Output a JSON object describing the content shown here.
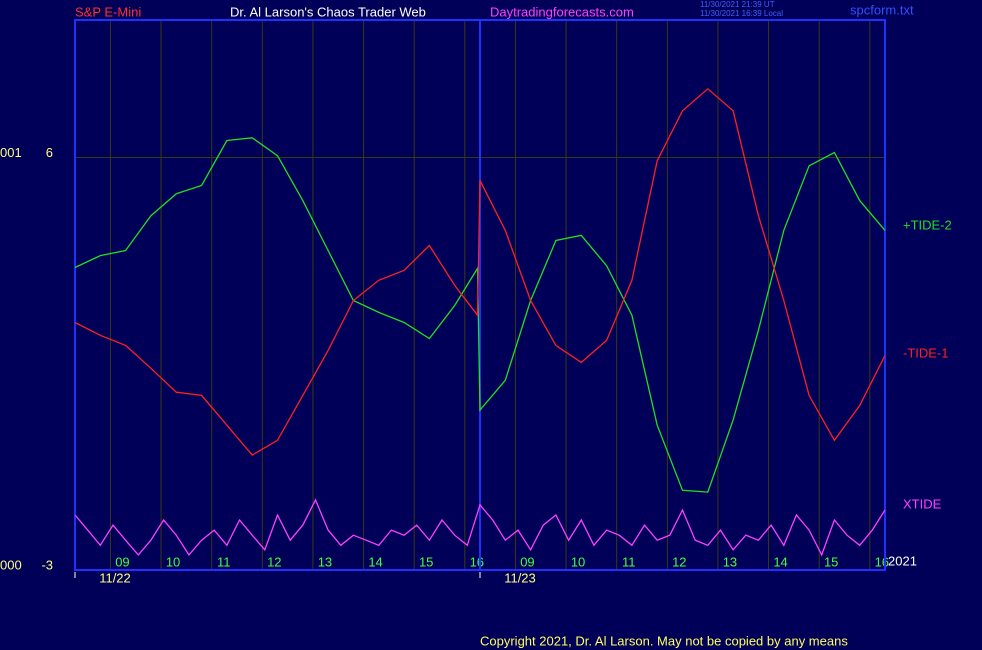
{
  "chart_data": {
    "type": "line",
    "header": {
      "instrument": "S&P E-Mini",
      "title": "Dr. Al Larson's Chaos Trader Web",
      "site": "Daytradingforecasts.com",
      "time_ut": "11/30/2021 21:39 UT",
      "time_local": "11/30/2021 16:39 Local",
      "file": "spcform.txt"
    },
    "footer": "Copyright 2021, Dr. Al Larson. May not be copied by any means",
    "year_label": "2021",
    "xlim": [
      0,
      16
    ],
    "ylim": [
      -3,
      9
    ],
    "yticks": [
      6,
      -3
    ],
    "y_extra_labels": [
      "001",
      "000"
    ],
    "xticks": [
      {
        "value": 0.7,
        "label": "09"
      },
      {
        "value": 1.7,
        "label": "10"
      },
      {
        "value": 2.7,
        "label": "11"
      },
      {
        "value": 3.7,
        "label": "12"
      },
      {
        "value": 4.7,
        "label": "13"
      },
      {
        "value": 5.7,
        "label": "14"
      },
      {
        "value": 6.7,
        "label": "15"
      },
      {
        "value": 7.7,
        "label": "16"
      },
      {
        "value": 8.7,
        "label": "09"
      },
      {
        "value": 9.7,
        "label": "10"
      },
      {
        "value": 10.7,
        "label": "11"
      },
      {
        "value": 11.7,
        "label": "12"
      },
      {
        "value": 12.7,
        "label": "13"
      },
      {
        "value": 13.7,
        "label": "14"
      },
      {
        "value": 14.7,
        "label": "15"
      },
      {
        "value": 15.7,
        "label": "16"
      }
    ],
    "date_ticks": [
      {
        "value": 0,
        "label": "11/22"
      },
      {
        "value": 8,
        "label": "11/23"
      }
    ],
    "day_break": 8,
    "grid": true,
    "series": [
      {
        "name": "+TIDE-2",
        "color": "#20e020",
        "x": [
          0,
          0.5,
          1,
          1.5,
          2,
          2.5,
          3,
          3.5,
          4,
          4.5,
          5,
          5.5,
          6,
          6.5,
          7,
          7.5,
          7.95,
          8,
          8.5,
          9,
          9.5,
          10,
          10.5,
          11,
          11.5,
          12,
          12.5,
          13,
          13.5,
          14,
          14.5,
          15,
          15.5,
          16
        ],
        "values": [
          3.6,
          3.86,
          3.97,
          4.73,
          5.21,
          5.39,
          6.37,
          6.43,
          6.04,
          5.06,
          3.97,
          2.88,
          2.62,
          2.4,
          2.05,
          2.77,
          3.58,
          0.49,
          1.14,
          2.88,
          4.19,
          4.3,
          3.64,
          2.56,
          0.16,
          -1.26,
          -1.3,
          0.27,
          2.23,
          4.41,
          5.82,
          6.11,
          5.06,
          4.41
        ]
      },
      {
        "name": "-TIDE-1",
        "color": "#ff2020",
        "x": [
          0,
          0.5,
          1,
          1.5,
          2,
          2.5,
          3,
          3.5,
          4,
          4.5,
          5,
          5.5,
          6,
          6.5,
          7,
          7.5,
          7.95,
          8,
          8.5,
          9,
          9.5,
          10,
          10.5,
          11,
          11.5,
          12,
          12.5,
          13,
          13.5,
          14,
          14.5,
          15,
          15.5,
          16
        ],
        "values": [
          2.4,
          2.12,
          1.9,
          1.4,
          0.88,
          0.81,
          0.16,
          -0.49,
          -0.17,
          0.81,
          1.79,
          2.88,
          3.32,
          3.54,
          4.08,
          3.21,
          2.56,
          5.5,
          4.41,
          2.88,
          1.9,
          1.53,
          2.01,
          3.32,
          5.93,
          7.02,
          7.5,
          7.02,
          4.73,
          2.88,
          0.81,
          -0.17,
          0.59,
          1.68
        ]
      },
      {
        "name": "XTIDE",
        "color": "#ff40ff",
        "x": [
          0,
          0.25,
          0.5,
          0.75,
          1,
          1.25,
          1.5,
          1.75,
          2,
          2.25,
          2.5,
          2.75,
          3,
          3.25,
          3.5,
          3.75,
          4,
          4.25,
          4.5,
          4.75,
          5,
          5.25,
          5.5,
          5.75,
          6,
          6.25,
          6.5,
          6.75,
          7,
          7.25,
          7.5,
          7.75,
          8,
          8.25,
          8.5,
          8.75,
          9,
          9.25,
          9.5,
          9.75,
          10,
          10.25,
          10.5,
          10.75,
          11,
          11.25,
          11.5,
          11.75,
          12,
          12.25,
          12.5,
          12.75,
          13,
          13.25,
          13.5,
          13.75,
          14,
          14.25,
          14.5,
          14.75,
          15,
          15.25,
          15.5,
          15.75,
          16
        ],
        "values": [
          -1.8,
          -2.13,
          -2.46,
          -2.02,
          -2.35,
          -2.67,
          -2.35,
          -1.91,
          -2.24,
          -2.67,
          -2.35,
          -2.13,
          -2.46,
          -1.91,
          -2.24,
          -2.56,
          -1.8,
          -2.35,
          -2.02,
          -1.47,
          -2.13,
          -2.46,
          -2.24,
          -2.35,
          -2.46,
          -2.13,
          -2.24,
          -2.02,
          -2.35,
          -1.91,
          -2.24,
          -2.46,
          -1.58,
          -1.91,
          -2.35,
          -2.13,
          -2.56,
          -2.02,
          -1.8,
          -2.35,
          -1.91,
          -2.46,
          -2.13,
          -2.24,
          -2.46,
          -2.02,
          -2.35,
          -2.24,
          -1.69,
          -2.35,
          -2.46,
          -2.13,
          -2.56,
          -2.24,
          -2.35,
          -2.02,
          -2.46,
          -1.8,
          -2.13,
          -2.67,
          -1.91,
          -2.24,
          -2.46,
          -2.13,
          -1.69
        ]
      }
    ]
  }
}
